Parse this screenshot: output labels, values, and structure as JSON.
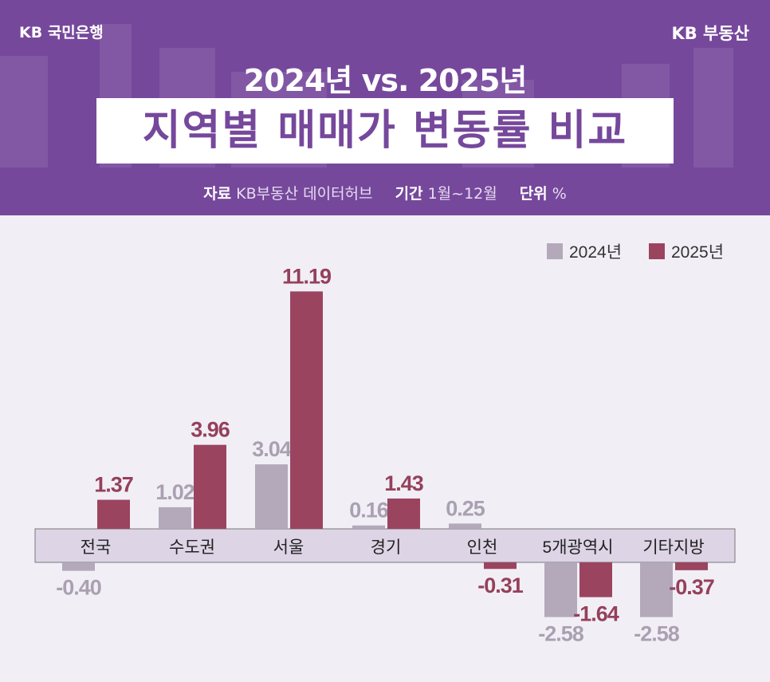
{
  "header": {
    "logo": "KB 국민은행",
    "brand": "KB 부동산",
    "subtitle": "2024년 vs. 2025년",
    "title": "지역별 매매가 변동률 비교",
    "meta": [
      {
        "label": "자료",
        "value": "KB부동산 데이터허브"
      },
      {
        "label": "기간",
        "value": "1월~12월"
      },
      {
        "label": "단위",
        "value": "%"
      }
    ]
  },
  "chart_data": {
    "type": "bar",
    "title": "지역별 매매가 변동률 비교",
    "categories": [
      "전국",
      "수도권",
      "서울",
      "경기",
      "인천",
      "5개광역시",
      "기타지방"
    ],
    "series": [
      {
        "name": "2024년",
        "color": "#b3a9bb",
        "values": [
          -0.4,
          1.02,
          3.04,
          0.16,
          0.25,
          -2.58,
          -2.58
        ]
      },
      {
        "name": "2025년",
        "color": "#9b4460",
        "values": [
          1.37,
          3.96,
          11.19,
          1.43,
          -0.31,
          -1.64,
          -0.37
        ]
      }
    ],
    "legend": "top-right",
    "grid": false,
    "axis_band_color": "#ddd4e6"
  }
}
